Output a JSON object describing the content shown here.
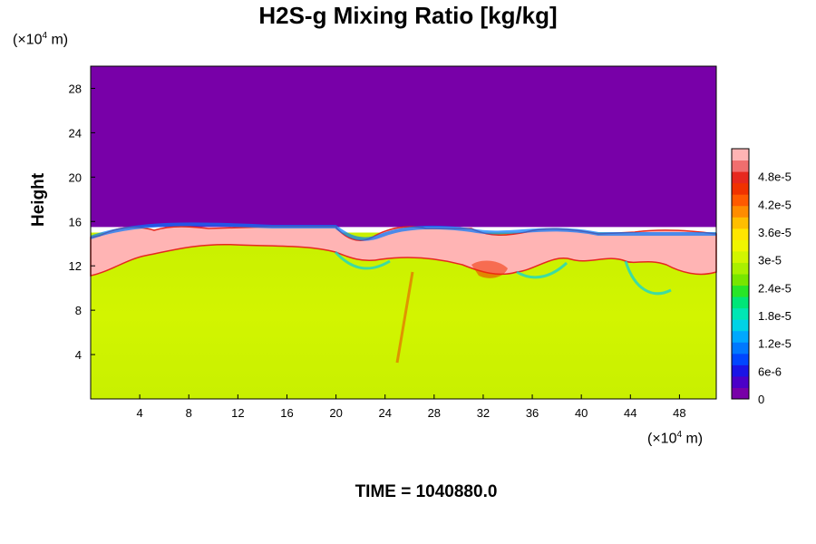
{
  "chart_data": {
    "type": "heatmap",
    "title": "H2S-g Mixing Ratio [kg/kg]",
    "ylabel": "Height",
    "y_unit": {
      "prefix": "(×10",
      "exp": "4",
      "suffix": " m)"
    },
    "x_unit": {
      "prefix": "(×10",
      "exp": "4",
      "suffix": " m)"
    },
    "xlim": [
      0,
      51
    ],
    "ylim": [
      0,
      30
    ],
    "xticks": [
      4,
      8,
      12,
      16,
      20,
      24,
      28,
      32,
      36,
      40,
      44,
      48
    ],
    "yticks": [
      4,
      8,
      12,
      16,
      20,
      24,
      28
    ],
    "colorbar": {
      "range": [
        0,
        5.4e-05
      ],
      "labels": [
        {
          "text": "4.8e-5",
          "value": 4.8e-05
        },
        {
          "text": "4.2e-5",
          "value": 4.2e-05
        },
        {
          "text": "3.6e-5",
          "value": 3.6e-05
        },
        {
          "text": "3e-5",
          "value": 3e-05
        },
        {
          "text": "2.4e-5",
          "value": 2.4e-05
        },
        {
          "text": "1.8e-5",
          "value": 1.8e-05
        },
        {
          "text": "1.2e-5",
          "value": 1.2e-05
        },
        {
          "text": "6e-6",
          "value": 6e-06
        },
        {
          "text": "0",
          "value": 0
        }
      ],
      "colors": [
        "#7800a8",
        "#4b00c8",
        "#1a14e6",
        "#0046ff",
        "#0078ff",
        "#00a8ff",
        "#00d2e6",
        "#00e6b4",
        "#00e678",
        "#28e628",
        "#78e600",
        "#aaf000",
        "#d2f500",
        "#f0f500",
        "#ffe600",
        "#ffbe00",
        "#ff8c00",
        "#ff5a00",
        "#f03200",
        "#e6281e",
        "#f06e6e",
        "#ffb4b4"
      ]
    },
    "field_description": {
      "upper_region": {
        "y_from": 15.5,
        "y_to": 30,
        "value": 0
      },
      "lower_region": {
        "y_from": 0,
        "y_to": 15,
        "value": 3.2e-05
      },
      "interface_high_value": 5.2e-05
    }
  },
  "footer": {
    "time_label": "TIME = 1040880.0"
  }
}
